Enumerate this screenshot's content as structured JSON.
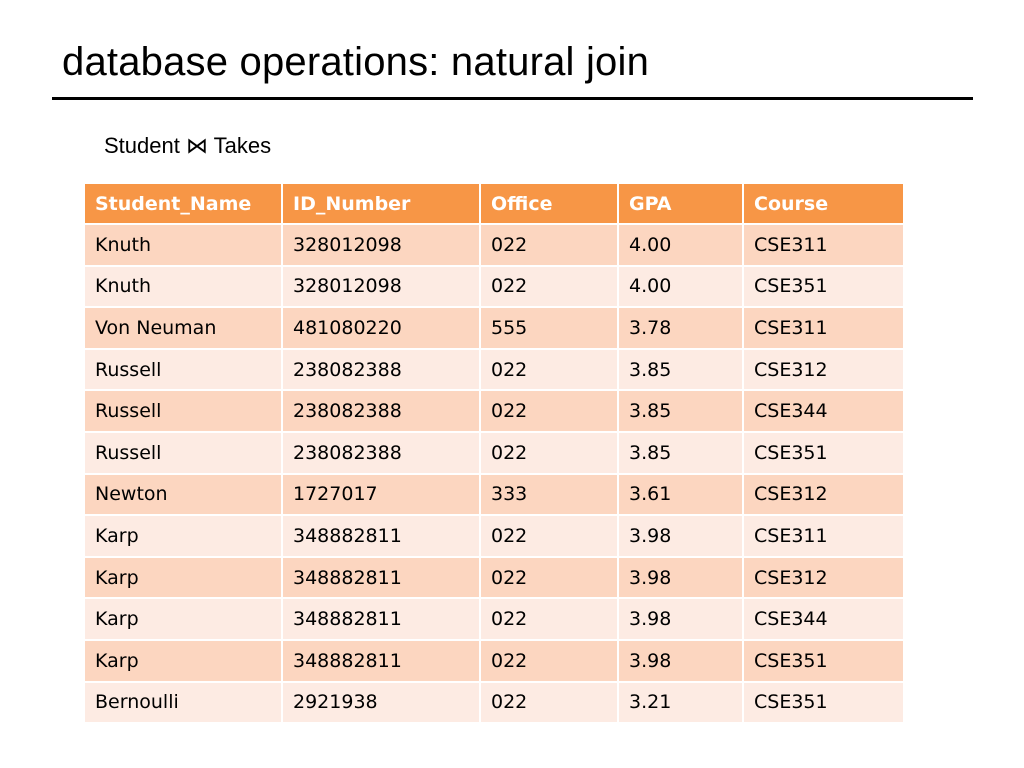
{
  "slide": {
    "title": "database operations: natural join",
    "subtitle": "Student ⋈ Takes"
  },
  "table": {
    "headers": [
      "Student_Name",
      "ID_Number",
      "Office",
      "GPA",
      "Course"
    ],
    "rows": [
      [
        "Knuth",
        "328012098",
        "022",
        "4.00",
        "CSE311"
      ],
      [
        "Knuth",
        "328012098",
        "022",
        "4.00",
        "CSE351"
      ],
      [
        "Von Neuman",
        "481080220",
        "555",
        "3.78",
        "CSE311"
      ],
      [
        "Russell",
        "238082388",
        "022",
        "3.85",
        "CSE312"
      ],
      [
        "Russell",
        "238082388",
        "022",
        "3.85",
        "CSE344"
      ],
      [
        "Russell",
        "238082388",
        "022",
        "3.85",
        "CSE351"
      ],
      [
        "Newton",
        "1727017",
        "333",
        "3.61",
        "CSE312"
      ],
      [
        "Karp",
        "348882811",
        "022",
        "3.98",
        "CSE311"
      ],
      [
        "Karp",
        "348882811",
        "022",
        "3.98",
        "CSE312"
      ],
      [
        "Karp",
        "348882811",
        "022",
        "3.98",
        "CSE344"
      ],
      [
        "Karp",
        "348882811",
        "022",
        "3.98",
        "CSE351"
      ],
      [
        "Bernoulli",
        "2921938",
        "022",
        "3.21",
        "CSE351"
      ]
    ]
  },
  "colors": {
    "header": "#f79646",
    "row_band_1": "#fcd6c0",
    "row_band_2": "#fdebe3",
    "title_rule": "#000000"
  }
}
